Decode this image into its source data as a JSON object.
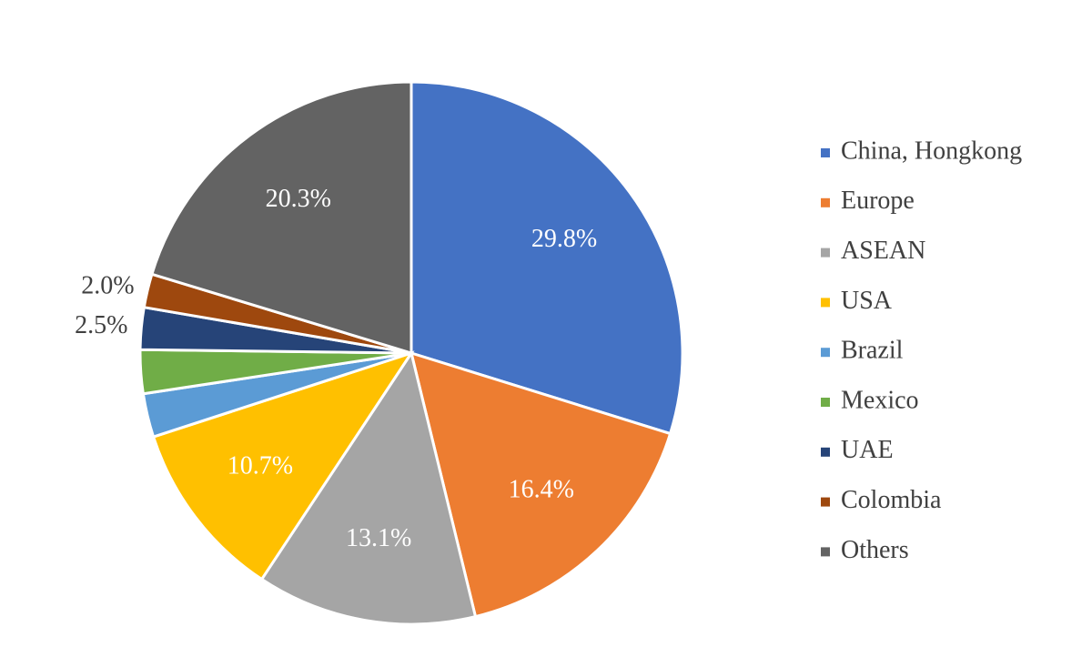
{
  "chart_data": {
    "type": "pie",
    "categories": [
      "China, Hongkong",
      "Europe",
      "ASEAN",
      "USA",
      "Brazil",
      "Mexico",
      "UAE",
      "Colombia",
      "Others"
    ],
    "values": [
      29.8,
      16.4,
      13.1,
      10.7,
      2.6,
      2.6,
      2.5,
      2.0,
      20.3
    ],
    "value_labels": [
      "29.8%",
      "16.4%",
      "13.1%",
      "10.7%",
      null,
      null,
      "2.5%",
      "2.0%",
      "20.3%"
    ],
    "colors": [
      "#4472c4",
      "#ed7d31",
      "#a5a5a5",
      "#ffc000",
      "#5b9bd5",
      "#70ad47",
      "#264478",
      "#9e480e",
      "#636363"
    ],
    "legend": "right"
  }
}
